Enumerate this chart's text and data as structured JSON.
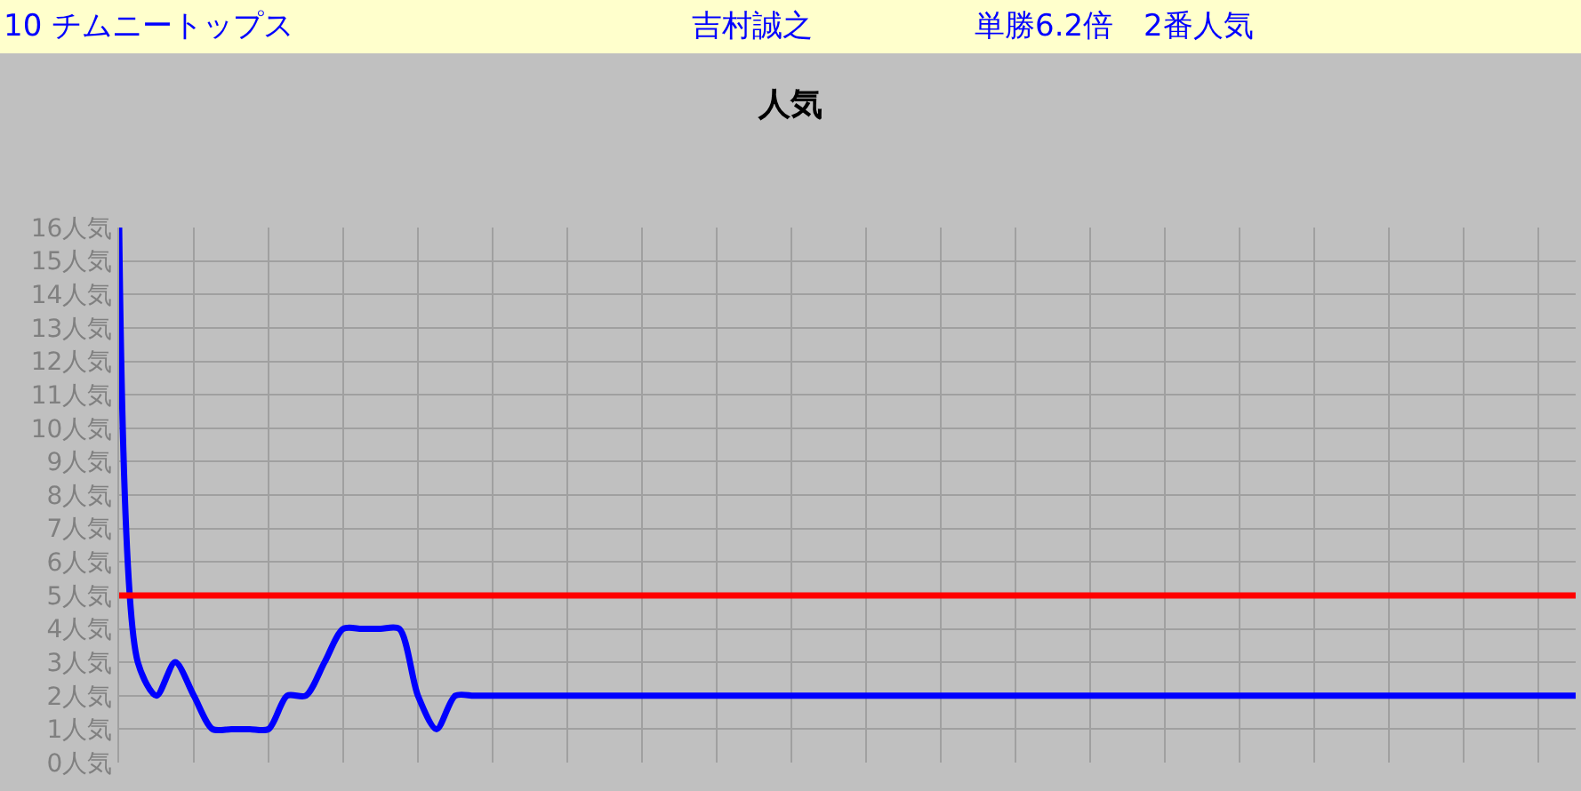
{
  "chart_data": {
    "type": "line",
    "title": "人気",
    "annotations": [
      "10 チムニートップス",
      "吉村誠之",
      "単勝6.2倍　2番人気"
    ],
    "categories": [
      null,
      null,
      null,
      null,
      null,
      null,
      null,
      null,
      null,
      null,
      null,
      null,
      null,
      null,
      null,
      null,
      null,
      null,
      null,
      null,
      null,
      null,
      null,
      null,
      null,
      null,
      null,
      null,
      null,
      null,
      null,
      null,
      null,
      null,
      null,
      null,
      null,
      null,
      null,
      null,
      null,
      null,
      null,
      null,
      null,
      null,
      null,
      null,
      null,
      null,
      null,
      null,
      null,
      null,
      null,
      null,
      null,
      null,
      null,
      null,
      null,
      null,
      null,
      null,
      null,
      null,
      null,
      null,
      null,
      null,
      null,
      null,
      null,
      null,
      null,
      null,
      null,
      null,
      null
    ],
    "series": [
      {
        "color": "#0000ff",
        "values": [
          16,
          3,
          2,
          3,
          2,
          1,
          1,
          1,
          1,
          2,
          2,
          3,
          4,
          4,
          4,
          4,
          2,
          1,
          2,
          2,
          2,
          2,
          2,
          2,
          2,
          2,
          2,
          2,
          2,
          2,
          2,
          2,
          2,
          2,
          2,
          2,
          2,
          2,
          2,
          2,
          2,
          2,
          2,
          2,
          2,
          2,
          2,
          2,
          2,
          2,
          2,
          2,
          2,
          2,
          2,
          2,
          2,
          2,
          2,
          2,
          2,
          2,
          2,
          2,
          2,
          2,
          2,
          2,
          2,
          2,
          2,
          2,
          2,
          2,
          2,
          2,
          2,
          2,
          2
        ]
      }
    ],
    "ylim": [
      0,
      16
    ],
    "yticks": [
      {
        "value": 0,
        "label": "0人気"
      },
      {
        "value": 1,
        "label": "1人気"
      },
      {
        "value": 2,
        "label": "2人気"
      },
      {
        "value": 3,
        "label": "3人気"
      },
      {
        "value": 4,
        "label": "4人気"
      },
      {
        "value": 5,
        "label": "5人気"
      },
      {
        "value": 6,
        "label": "6人気"
      },
      {
        "value": 7,
        "label": "7人気"
      },
      {
        "value": 8,
        "label": "8人気"
      },
      {
        "value": 9,
        "label": "9人気"
      },
      {
        "value": 10,
        "label": "10人気"
      },
      {
        "value": 11,
        "label": "11人気"
      },
      {
        "value": 12,
        "label": "12人気"
      },
      {
        "value": 13,
        "label": "13人気"
      },
      {
        "value": 14,
        "label": "14人気"
      },
      {
        "value": 15,
        "label": "15人気"
      },
      {
        "value": 16,
        "label": "16人気"
      }
    ],
    "ref_lines": [
      {
        "axis": "y",
        "value": 5,
        "color": "#ff0000"
      }
    ],
    "grid": true,
    "tick_labels": "y",
    "marker": "none",
    "line_style": "solid"
  }
}
